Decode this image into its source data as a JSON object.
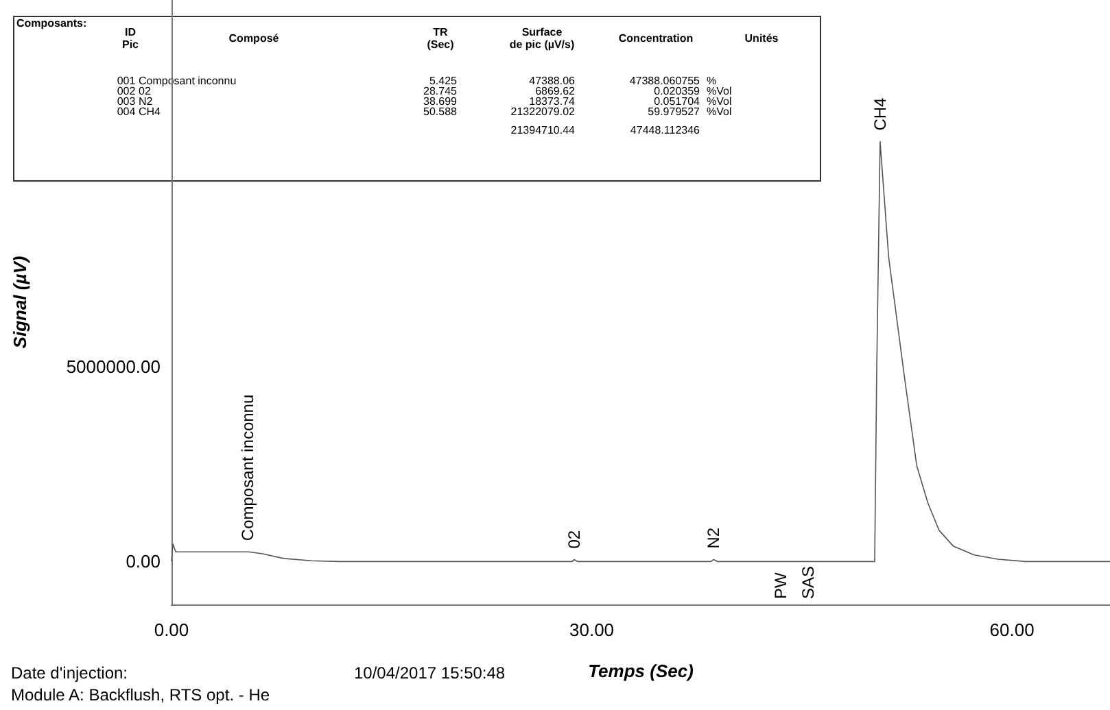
{
  "chart_data": {
    "type": "line",
    "xlabel": "Temps (Sec)",
    "ylabel": "Signal (µV)",
    "xlim": [
      0,
      67
    ],
    "xticks": [
      {
        "value": 0,
        "label": "0.00"
      },
      {
        "value": 30,
        "label": "30.00"
      },
      {
        "value": 60,
        "label": "60.00"
      }
    ],
    "ylim": [
      -1100000,
      14400000
    ],
    "yticks": [
      {
        "value": 0,
        "label": "0.00"
      },
      {
        "value": 5000000,
        "label": "5000000.00"
      }
    ],
    "grid": false,
    "marker": "none",
    "line_style": "solid",
    "series": [
      {
        "color": "#555555",
        "x": [
          0,
          0.1,
          0.3,
          5.425,
          5.5,
          6.5,
          8,
          10,
          12,
          28.6,
          28.745,
          29,
          38.5,
          38.699,
          39,
          50.2,
          50.35,
          50.588,
          51.2,
          52.3,
          53.2,
          54,
          54.8,
          55.8,
          57.3,
          59,
          61,
          67
        ],
        "values": [
          0,
          450000,
          250000,
          250000,
          250000,
          200000,
          80000,
          20000,
          0,
          0,
          50000,
          0,
          0,
          50000,
          0,
          0,
          5000000,
          10770000,
          7800000,
          4800000,
          2460000,
          1500000,
          800000,
          400000,
          170000,
          60000,
          0,
          0
        ]
      }
    ],
    "annotations": [
      "Composants:",
      "ID\nPic",
      "Composé",
      "TR\n(Sec)",
      "Surface\nde pic (µV/s)",
      "Concentration",
      "Unités",
      "001",
      "Composant inconnu",
      "5.425",
      "47388.06",
      "47388.060755",
      "%",
      "002",
      "02",
      "28.745",
      "6869.62",
      "0.020359",
      "%Vol",
      "003",
      "N2",
      "38.699",
      "18373.74",
      "0.051704",
      "%Vol",
      "004",
      "CH4",
      "50.588",
      "21322079.02",
      "59.979527",
      "%Vol",
      "21394710.44",
      "47448.112346",
      "Date d'injection:",
      "10/04/2017 15:50:48",
      "Module A: Backflush, RTS opt. - He",
      "PW",
      "SAS",
      {
        "text": "Composant inconnu",
        "x": 5.425,
        "y": 250000
      },
      {
        "text": "02",
        "x": 28.745,
        "y": 50000
      },
      {
        "text": "N2",
        "x": 38.699,
        "y": 50000
      },
      {
        "text": "CH4",
        "x": 50.588,
        "y": 10770000
      }
    ]
  }
}
